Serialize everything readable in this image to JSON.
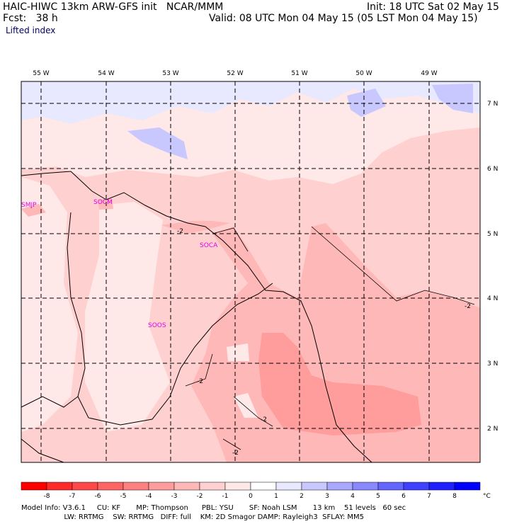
{
  "header": {
    "model_line": "HAIC-HIWC 13km ARW-GFS init   NCAR/MMM",
    "fcst_label": "Fcst:   38 h",
    "init": "Init: 18 UTC Sat 02 May 15",
    "valid": "Valid: 08 UTC Mon 04 May 15 (05 LST Mon 04 May 15)",
    "field": "Lifted index"
  },
  "map": {
    "lon_labels": [
      "55 W",
      "54 W",
      "53 W",
      "52 W",
      "51 W",
      "50 W",
      "49 W"
    ],
    "lat_labels": [
      "7 N",
      "6 N",
      "5 N",
      "4 N",
      "3 N",
      "2 N"
    ],
    "stations": [
      "SMJP",
      "SOCM",
      "SOCA",
      "SOOS"
    ],
    "contour_labels": [
      "-2",
      "-2",
      "-2",
      "-2",
      "-2",
      "-2"
    ]
  },
  "colorbar": {
    "ticks": [
      "-8",
      "-7",
      "-6",
      "-5",
      "-4",
      "-3",
      "-2",
      "-1",
      "0",
      "1",
      "2",
      "3",
      "4",
      "5",
      "6",
      "7",
      "8"
    ],
    "unit": "°C",
    "colors": [
      "#ff0000",
      "#ff2a2a",
      "#ff4848",
      "#ff6464",
      "#ff8080",
      "#ff9c9c",
      "#ffb8b8",
      "#ffd0d0",
      "#ffe8e8",
      "#ffffff",
      "#e8e8ff",
      "#c8c8ff",
      "#a8a8ff",
      "#8888ff",
      "#6464ff",
      "#4040ff",
      "#2020ff",
      "#0000ff"
    ]
  },
  "footer": {
    "line1": "Model Info: V3.6.1     CU: KF       MP: Thompson      PBL: YSU       SF: Noah LSM       13 km    51 levels   60 sec",
    "line2": "                   LW: RRTMG    SW: RRTMG   DIFF: full    KM: 2D Smagor DAMP: Rayleigh3  SFLAY: MM5"
  }
}
